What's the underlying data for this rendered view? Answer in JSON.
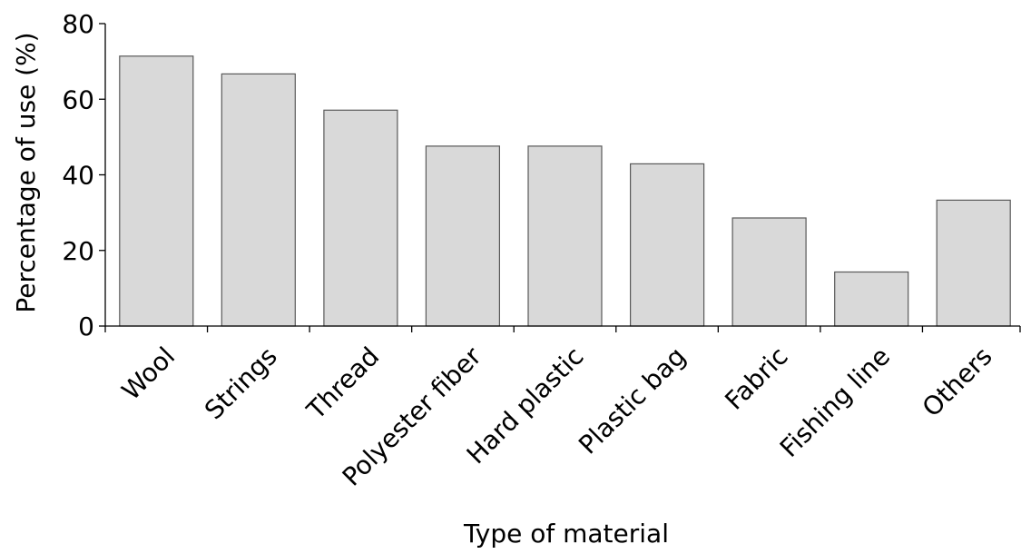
{
  "chart_data": {
    "type": "bar",
    "categories": [
      "Wool",
      "Strings",
      "Thread",
      "Polyester fiber",
      "Hard plastic",
      "Plastic bag",
      "Fabric",
      "Fishing line",
      "Others"
    ],
    "values": [
      71.4,
      66.7,
      57.1,
      47.6,
      47.6,
      42.9,
      28.6,
      14.3,
      33.3
    ],
    "title": "",
    "xlabel": "Type of material",
    "ylabel": "Percentage of use (%)",
    "ylim": [
      0,
      80
    ],
    "yticks": [
      0,
      20,
      40,
      60,
      80
    ],
    "grid": false,
    "legend": "none",
    "colors": {
      "bar_fill": "#d9d9d9",
      "bar_stroke": "#595959",
      "axis": "#000000"
    }
  }
}
